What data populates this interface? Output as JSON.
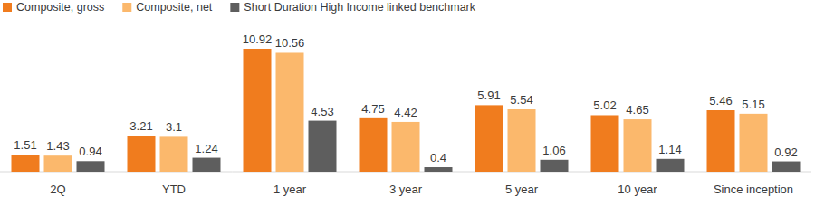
{
  "chart_data": {
    "type": "bar",
    "categories": [
      "2Q",
      "YTD",
      "1 year",
      "3 year",
      "5 year",
      "10 year",
      "Since inception"
    ],
    "series": [
      {
        "name": "Composite, gross",
        "color": "#f07c1e",
        "values": [
          1.51,
          3.21,
          10.92,
          4.75,
          5.91,
          5.02,
          5.46
        ]
      },
      {
        "name": "Composite, net",
        "color": "#fbb86c",
        "values": [
          1.43,
          3.1,
          10.56,
          4.42,
          5.54,
          4.65,
          5.15
        ]
      },
      {
        "name": "Short Duration High Income linked benchmark",
        "color": "#5e5e5e",
        "values": [
          0.94,
          1.24,
          4.53,
          0.4,
          1.06,
          1.14,
          0.92
        ]
      }
    ],
    "ylim": [
      0,
      11
    ],
    "data_labels": true,
    "legend": "top-left",
    "tick_labels": "x"
  }
}
